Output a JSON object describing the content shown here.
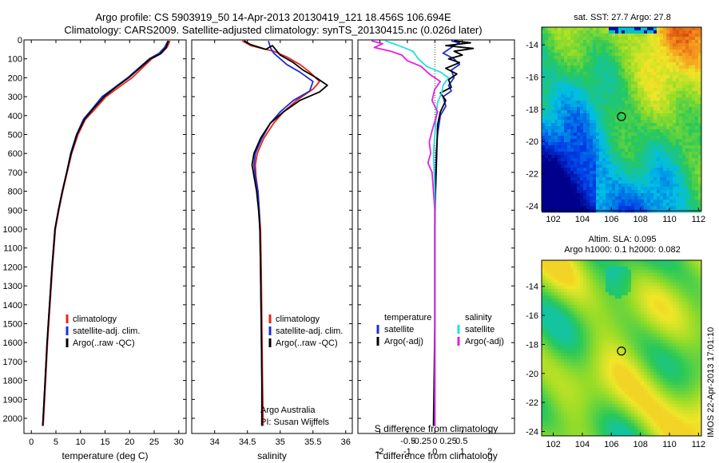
{
  "title_line1": "Argo profile: CS 5903919_50 14-Apr-2013 20130419_121 18.456S 106.694E",
  "title_line2": "Climatology: CARS2009. Satellite-adjusted climatology: synTS_20130415.nc (0.026d later)",
  "colors": {
    "clim": "#e8261c",
    "sat": "#1c2fd6",
    "argo": "#000000",
    "sat_salt": "#21e0e0",
    "argo_salt": "#e020e0"
  },
  "chart_data": [
    {
      "id": "temperature",
      "type": "line",
      "xlabel": "temperature (deg C)",
      "xlim": [
        -1.5,
        31.5
      ],
      "ylim": [
        0,
        2080
      ],
      "xticks": [
        0,
        5,
        10,
        15,
        20,
        25,
        30
      ],
      "yticks": [
        0,
        100,
        200,
        300,
        400,
        500,
        600,
        700,
        800,
        900,
        1000,
        1100,
        1200,
        1300,
        1400,
        1500,
        1600,
        1700,
        1800,
        1900,
        2000
      ],
      "legend": [
        "climatology",
        "satellite-adj. clim.",
        "Argo(..raw -QC)"
      ],
      "series": [
        {
          "name": "climatology",
          "color": "clim",
          "points": [
            [
              28.2,
              5
            ],
            [
              27.6,
              40
            ],
            [
              26.5,
              70
            ],
            [
              24.5,
              100
            ],
            [
              22.5,
              150
            ],
            [
              20.5,
              200
            ],
            [
              17.8,
              250
            ],
            [
              15.2,
              300
            ],
            [
              12.8,
              370
            ],
            [
              11.0,
              420
            ],
            [
              9.5,
              500
            ],
            [
              8.2,
              600
            ],
            [
              7.3,
              700
            ],
            [
              6.4,
              800
            ],
            [
              5.6,
              900
            ],
            [
              4.9,
              1000
            ],
            [
              4.3,
              1200
            ],
            [
              3.8,
              1400
            ],
            [
              3.3,
              1600
            ],
            [
              2.9,
              1800
            ],
            [
              2.5,
              2000
            ],
            [
              2.4,
              2040
            ]
          ]
        },
        {
          "name": "satellite-adj. clim.",
          "color": "sat",
          "points": [
            [
              27.8,
              5
            ],
            [
              27.1,
              40
            ],
            [
              26.0,
              70
            ],
            [
              24.0,
              100
            ],
            [
              21.8,
              150
            ],
            [
              19.6,
              200
            ],
            [
              17.0,
              250
            ],
            [
              14.4,
              300
            ],
            [
              12.2,
              370
            ],
            [
              10.6,
              420
            ],
            [
              9.2,
              500
            ],
            [
              8.0,
              600
            ],
            [
              7.2,
              700
            ],
            [
              6.3,
              800
            ],
            [
              5.5,
              900
            ],
            [
              4.8,
              1000
            ],
            [
              4.2,
              1200
            ],
            [
              3.7,
              1400
            ],
            [
              3.2,
              1600
            ],
            [
              2.8,
              1800
            ],
            [
              2.4,
              2000
            ],
            [
              2.3,
              2040
            ]
          ]
        },
        {
          "name": "Argo(..raw -QC)",
          "color": "argo",
          "points": [
            [
              27.9,
              5
            ],
            [
              27.4,
              40
            ],
            [
              26.2,
              75
            ],
            [
              24.2,
              100
            ],
            [
              22.0,
              150
            ],
            [
              19.8,
              200
            ],
            [
              17.2,
              250
            ],
            [
              14.8,
              300
            ],
            [
              12.4,
              370
            ],
            [
              10.8,
              420
            ],
            [
              9.3,
              500
            ],
            [
              8.1,
              600
            ],
            [
              7.2,
              700
            ],
            [
              6.3,
              800
            ],
            [
              5.5,
              900
            ],
            [
              4.8,
              1000
            ],
            [
              4.2,
              1200
            ],
            [
              3.7,
              1400
            ],
            [
              3.2,
              1600
            ],
            [
              2.8,
              1800
            ],
            [
              2.4,
              2000
            ],
            [
              2.3,
              2040
            ]
          ]
        }
      ]
    },
    {
      "id": "salinity",
      "type": "line",
      "xlabel": "salinity",
      "xlim": [
        33.65,
        36.1
      ],
      "ylim": [
        0,
        2080
      ],
      "xticks": [
        34,
        34.5,
        35,
        35.5,
        36
      ],
      "yticks": [
        0,
        100,
        200,
        300,
        400,
        500,
        600,
        700,
        800,
        900,
        1000,
        1100,
        1200,
        1300,
        1400,
        1500,
        1600,
        1700,
        1800,
        1900,
        2000
      ],
      "legend": [
        "climatology",
        "satellite-adj. clim.",
        "Argo(..raw -QC)"
      ],
      "annotations": [
        "Argo Australia",
        "PI: Susan Wijffels"
      ],
      "series": [
        {
          "name": "climatology",
          "color": "clim",
          "points": [
            [
              34.42,
              5
            ],
            [
              34.55,
              30
            ],
            [
              34.9,
              60
            ],
            [
              35.1,
              90
            ],
            [
              35.3,
              130
            ],
            [
              35.45,
              170
            ],
            [
              35.6,
              220
            ],
            [
              35.5,
              260
            ],
            [
              35.25,
              320
            ],
            [
              35.05,
              380
            ],
            [
              34.9,
              440
            ],
            [
              34.75,
              520
            ],
            [
              34.65,
              600
            ],
            [
              34.62,
              660
            ],
            [
              34.63,
              720
            ],
            [
              34.66,
              800
            ],
            [
              34.68,
              900
            ],
            [
              34.7,
              1000
            ],
            [
              34.71,
              1200
            ],
            [
              34.72,
              1500
            ],
            [
              34.73,
              1800
            ],
            [
              34.74,
              2000
            ],
            [
              34.74,
              2040
            ]
          ]
        },
        {
          "name": "satellite-adj. clim.",
          "color": "sat",
          "points": [
            [
              34.82,
              5
            ],
            [
              34.85,
              40
            ],
            [
              34.9,
              70
            ],
            [
              35.0,
              100
            ],
            [
              35.1,
              130
            ],
            [
              35.3,
              170
            ],
            [
              35.5,
              220
            ],
            [
              35.45,
              270
            ],
            [
              35.2,
              320
            ],
            [
              35.0,
              380
            ],
            [
              34.85,
              440
            ],
            [
              34.72,
              520
            ],
            [
              34.62,
              600
            ],
            [
              34.6,
              660
            ],
            [
              34.62,
              720
            ],
            [
              34.66,
              800
            ],
            [
              34.68,
              900
            ],
            [
              34.69,
              1000
            ],
            [
              34.7,
              1200
            ],
            [
              34.71,
              1500
            ],
            [
              34.72,
              1800
            ],
            [
              34.72,
              2000
            ],
            [
              34.72,
              2040
            ]
          ]
        },
        {
          "name": "Argo(..raw -QC)",
          "color": "argo",
          "points": [
            [
              34.45,
              5
            ],
            [
              34.55,
              25
            ],
            [
              34.78,
              50
            ],
            [
              34.88,
              30
            ],
            [
              35.0,
              80
            ],
            [
              35.2,
              120
            ],
            [
              35.35,
              160
            ],
            [
              35.55,
              200
            ],
            [
              35.72,
              240
            ],
            [
              35.6,
              275
            ],
            [
              35.3,
              320
            ],
            [
              35.05,
              380
            ],
            [
              34.85,
              440
            ],
            [
              34.7,
              520
            ],
            [
              34.6,
              600
            ],
            [
              34.57,
              660
            ],
            [
              34.6,
              720
            ],
            [
              34.64,
              800
            ],
            [
              34.67,
              900
            ],
            [
              34.69,
              1000
            ],
            [
              34.7,
              1200
            ],
            [
              34.71,
              1500
            ],
            [
              34.72,
              1800
            ],
            [
              34.72,
              2000
            ],
            [
              34.72,
              2040
            ]
          ]
        }
      ]
    },
    {
      "id": "difference",
      "type": "line",
      "xlabel": "T difference from climatology",
      "xlabel_top": "S difference from climatology",
      "xlim": [
        -2.8,
        2.9
      ],
      "ylim": [
        0,
        2080
      ],
      "xticks": [
        -2,
        -1,
        0,
        1,
        2
      ],
      "xticks_salt": [
        -0.5,
        -0.25,
        0,
        0.25,
        0.5
      ],
      "yticks": [
        0,
        100,
        200,
        300,
        400,
        500,
        600,
        700,
        800,
        900,
        1000,
        1100,
        1200,
        1300,
        1400,
        1500,
        1600,
        1700,
        1800,
        1900,
        2000
      ],
      "legend_temperature": {
        "heading": "temperature",
        "items": [
          "satellite",
          "Argo(-adj)"
        ]
      },
      "legend_salinity": {
        "heading": "salinity",
        "items": [
          "satellite",
          "Argo(-adj)"
        ]
      },
      "series": [
        {
          "name": "T satellite",
          "color": "sat",
          "points": [
            [
              0.6,
              5
            ],
            [
              0.9,
              15
            ],
            [
              0.7,
              30
            ],
            [
              0.5,
              50
            ],
            [
              0.3,
              70
            ],
            [
              0.7,
              100
            ],
            [
              0.9,
              130
            ],
            [
              0.6,
              160
            ],
            [
              0.7,
              200
            ],
            [
              0.5,
              240
            ],
            [
              0.6,
              270
            ],
            [
              0.3,
              300
            ],
            [
              0.4,
              350
            ],
            [
              0.2,
              400
            ],
            [
              0.1,
              500
            ],
            [
              0.05,
              600
            ],
            [
              0.02,
              800
            ],
            [
              0.0,
              1000
            ],
            [
              0.0,
              1500
            ],
            [
              0.0,
              2040
            ]
          ]
        },
        {
          "name": "T Argo(-adj)",
          "color": "argo",
          "points": [
            [
              0.7,
              5
            ],
            [
              1.3,
              15
            ],
            [
              0.4,
              30
            ],
            [
              1.4,
              45
            ],
            [
              0.7,
              60
            ],
            [
              1.0,
              80
            ],
            [
              0.5,
              100
            ],
            [
              0.9,
              120
            ],
            [
              0.4,
              150
            ],
            [
              0.8,
              180
            ],
            [
              0.5,
              210
            ],
            [
              0.6,
              250
            ],
            [
              0.2,
              280
            ],
            [
              0.4,
              320
            ],
            [
              0.2,
              380
            ],
            [
              0.1,
              450
            ],
            [
              0.08,
              550
            ],
            [
              0.05,
              700
            ],
            [
              0.0,
              900
            ],
            [
              0.0,
              1500
            ],
            [
              -0.05,
              2040
            ]
          ]
        },
        {
          "name": "S satellite",
          "color": "sat_salt",
          "points": [
            [
              -1.8,
              5
            ],
            [
              -1.4,
              25
            ],
            [
              -0.8,
              60
            ],
            [
              -0.6,
              100
            ],
            [
              -0.3,
              140
            ],
            [
              0.2,
              170
            ],
            [
              0.5,
              200
            ],
            [
              0.3,
              240
            ],
            [
              0.25,
              280
            ],
            [
              0.1,
              330
            ],
            [
              0.05,
              400
            ],
            [
              0.0,
              500
            ],
            [
              -0.05,
              600
            ],
            [
              0.0,
              800
            ],
            [
              0.0,
              1000
            ],
            [
              0.0,
              1500
            ],
            [
              0.0,
              2040
            ]
          ]
        },
        {
          "name": "S Argo(-adj)",
          "color": "argo_salt",
          "points": [
            [
              -2.3,
              5
            ],
            [
              -1.9,
              20
            ],
            [
              -2.2,
              40
            ],
            [
              -1.6,
              60
            ],
            [
              -1.2,
              80
            ],
            [
              -1.0,
              110
            ],
            [
              -0.5,
              140
            ],
            [
              -0.2,
              180
            ],
            [
              0.2,
              220
            ],
            [
              0.0,
              260
            ],
            [
              -0.1,
              320
            ],
            [
              0.1,
              380
            ],
            [
              0.0,
              430
            ],
            [
              -0.1,
              480
            ],
            [
              -0.2,
              540
            ],
            [
              -0.15,
              600
            ],
            [
              -0.25,
              650
            ],
            [
              -0.1,
              700
            ],
            [
              -0.05,
              800
            ],
            [
              0.0,
              900
            ],
            [
              0.0,
              1000
            ],
            [
              0.0,
              1500
            ],
            [
              0.0,
              2040
            ]
          ]
        }
      ]
    },
    {
      "id": "sst_map",
      "type": "heatmap",
      "title": "sat. SST: 27.7  Argo: 27.8",
      "xlim": [
        101.2,
        112.2
      ],
      "ylim": [
        -24.3,
        -12.9
      ],
      "xticks": [
        102,
        104,
        106,
        108,
        110,
        112
      ],
      "yticks": [
        -14,
        -16,
        -18,
        -20,
        -22,
        -24
      ],
      "marker": [
        106.694,
        -18.456
      ]
    },
    {
      "id": "sla_map",
      "type": "heatmap",
      "title_line1": "Altim. SLA: 0.095",
      "title_line2": "Argo h1000: 0.1  h2000: 0.082",
      "xlim": [
        101.2,
        112.2
      ],
      "ylim": [
        -24.3,
        -12.2
      ],
      "xticks": [
        102,
        104,
        106,
        108,
        110,
        112
      ],
      "yticks": [
        -14,
        -16,
        -18,
        -20,
        -22,
        -24
      ],
      "marker": [
        106.694,
        -18.456
      ]
    }
  ],
  "imos_stamp": "IMOS 22-Apr-2013 17:01:10"
}
